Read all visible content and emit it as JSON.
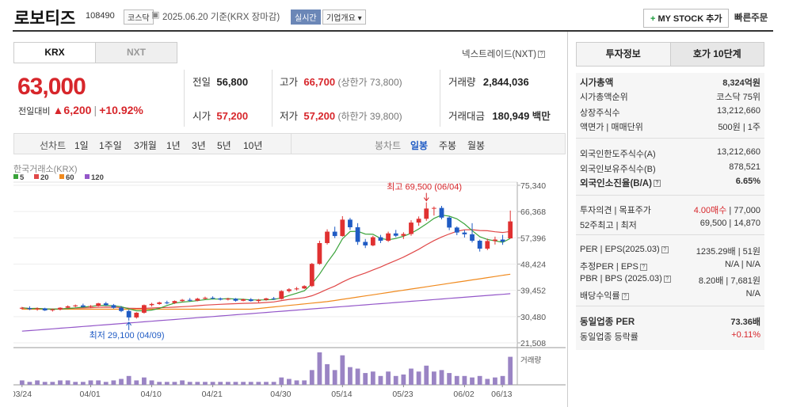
{
  "header": {
    "name": "로보티즈",
    "code": "108490",
    "market_tag": "코스닥",
    "date_text": "2025.06.20  기준(KRX 장마감)",
    "realtime_tag": "실시간",
    "company_tag": "기업개요",
    "mystock_label": "MY STOCK 추가",
    "quick_order_label": "빠른주문"
  },
  "exchange_tabs": [
    "KRX",
    "NXT"
  ],
  "nxt_link": "넥스트레이드(NXT)",
  "price": {
    "current": "63,000",
    "change_label": "전일대비",
    "change": "▲6,200",
    "change_pct": "+10.92%"
  },
  "quote": {
    "prev_label": "전일",
    "prev": "56,800",
    "open_label": "시가",
    "open": "57,200",
    "high_label": "고가",
    "high": "66,700",
    "upper_limit": "(상한가 73,800)",
    "low_label": "저가",
    "low": "57,200",
    "lower_limit": "(하한가 39,800)",
    "volume_label": "거래량",
    "volume": "2,844,036",
    "amount_label": "거래대금",
    "amount": "180,949",
    "amount_unit": "백만"
  },
  "period_bar": {
    "line_label": "선차트",
    "line_items": [
      "1일",
      "1주일",
      "3개월",
      "1년",
      "3년",
      "5년",
      "10년"
    ],
    "candle_label": "봉차트",
    "candle_items": [
      "일봉",
      "주봉",
      "월봉"
    ]
  },
  "chart_data": {
    "type": "candlestick",
    "source_label": "한국거래소(KRX)",
    "ma_legend": [
      {
        "name": "5",
        "color": "#3aa33a"
      },
      {
        "name": "20",
        "color": "#e04848"
      },
      {
        "name": "60",
        "color": "#f08a1e"
      },
      {
        "name": "120",
        "color": "#9457c9"
      }
    ],
    "y_ticks": [
      "75,340",
      "66,368",
      "57,396",
      "48,424",
      "39,452",
      "30,480",
      "21,508"
    ],
    "y_range": [
      21508,
      75340
    ],
    "x_ticks": [
      "03/24",
      "04/01",
      "04/10",
      "04/21",
      "04/30",
      "05/14",
      "05/23",
      "06/02",
      "06/13"
    ],
    "high_annotation": "최고 69,500 (06/04)",
    "low_annotation": "최저 29,100 (04/09)",
    "volume_label": "거래량",
    "candles": [
      [
        33200,
        33800,
        32900,
        33500
      ],
      [
        33400,
        34000,
        32700,
        33000
      ],
      [
        33000,
        33600,
        32500,
        33300
      ],
      [
        33300,
        33500,
        32400,
        32600
      ],
      [
        32700,
        33200,
        32200,
        32900
      ],
      [
        32900,
        33700,
        32600,
        33500
      ],
      [
        33500,
        34300,
        33300,
        34000
      ],
      [
        34000,
        34600,
        33700,
        34300
      ],
      [
        34300,
        34900,
        33600,
        33800
      ],
      [
        33800,
        34400,
        33400,
        34100
      ],
      [
        34100,
        35200,
        33900,
        35000
      ],
      [
        35000,
        35500,
        34100,
        34400
      ],
      [
        34400,
        34800,
        33200,
        33500
      ],
      [
        33500,
        34100,
        32000,
        32400
      ],
      [
        32400,
        32800,
        29100,
        30200
      ],
      [
        30200,
        32000,
        29800,
        31800
      ],
      [
        31800,
        34600,
        31500,
        34400
      ],
      [
        34400,
        35200,
        33900,
        34800
      ],
      [
        34800,
        35600,
        34500,
        35300
      ],
      [
        35300,
        35900,
        34700,
        35100
      ],
      [
        35100,
        36000,
        34800,
        35800
      ],
      [
        35800,
        36500,
        35500,
        36200
      ],
      [
        36200,
        36800,
        35600,
        35900
      ],
      [
        35900,
        36900,
        35700,
        36600
      ],
      [
        36600,
        37300,
        36300,
        36900
      ],
      [
        36900,
        37400,
        36400,
        36700
      ],
      [
        36700,
        37000,
        36000,
        36300
      ],
      [
        36300,
        36900,
        36000,
        36600
      ],
      [
        36600,
        36800,
        35600,
        35900
      ],
      [
        35900,
        36600,
        35700,
        36400
      ],
      [
        36400,
        36800,
        35600,
        35800
      ],
      [
        35800,
        36500,
        35300,
        36200
      ],
      [
        36200,
        36900,
        35900,
        36700
      ],
      [
        36700,
        37200,
        36200,
        36500
      ],
      [
        36500,
        39500,
        36300,
        39200
      ],
      [
        39200,
        40200,
        38700,
        39800
      ],
      [
        39800,
        40600,
        39400,
        40100
      ],
      [
        40100,
        41200,
        39900,
        40900
      ],
      [
        40900,
        48800,
        40600,
        48500
      ],
      [
        48500,
        56400,
        48200,
        55600
      ],
      [
        55600,
        60300,
        55100,
        59500
      ],
      [
        59500,
        61200,
        57300,
        58000
      ],
      [
        58000,
        64800,
        57800,
        63600
      ],
      [
        63600,
        64200,
        60100,
        61000
      ],
      [
        61000,
        62400,
        55000,
        56000
      ],
      [
        56000,
        57000,
        53900,
        54800
      ],
      [
        54800,
        58100,
        54500,
        57600
      ],
      [
        57600,
        58400,
        55600,
        56400
      ],
      [
        56400,
        59500,
        56000,
        58900
      ],
      [
        58900,
        60100,
        57600,
        58100
      ],
      [
        58100,
        59300,
        57000,
        58700
      ],
      [
        58700,
        63400,
        58100,
        62600
      ],
      [
        62600,
        64700,
        61500,
        63900
      ],
      [
        63900,
        69500,
        63200,
        67400
      ],
      [
        67400,
        68100,
        65000,
        67600
      ],
      [
        67600,
        68300,
        63700,
        64300
      ],
      [
        64300,
        64800,
        60000,
        60900
      ],
      [
        60900,
        61300,
        58300,
        59200
      ],
      [
        59200,
        60000,
        57500,
        58600
      ],
      [
        58600,
        62400,
        55800,
        56400
      ],
      [
        56400,
        56800,
        52700,
        53700
      ],
      [
        53700,
        57100,
        53200,
        56300
      ],
      [
        56300,
        57800,
        55100,
        56800
      ],
      [
        56800,
        58400,
        55000,
        56100
      ],
      [
        57200,
        66700,
        57200,
        63000
      ]
    ],
    "volumes": [
      3,
      2,
      3,
      2,
      2,
      3,
      3,
      2,
      2,
      3,
      3,
      2,
      3,
      4,
      6,
      3,
      5,
      3,
      2,
      2,
      2,
      3,
      2,
      2,
      2,
      2,
      2,
      2,
      2,
      2,
      2,
      2,
      2,
      2,
      5,
      4,
      3,
      3,
      10,
      22,
      14,
      10,
      20,
      12,
      11,
      8,
      9,
      6,
      9,
      6,
      7,
      11,
      9,
      13,
      9,
      10,
      8,
      6,
      6,
      5,
      6,
      4,
      5,
      6,
      19
    ]
  },
  "right_panel": {
    "tabs": [
      "투자정보",
      "호가 10단계"
    ],
    "rows": [
      {
        "label": "시가총액",
        "value": "8,324억원",
        "bold": true
      },
      {
        "label": "시가총액순위",
        "value": "코스닥 75위"
      },
      {
        "label": "상장주식수",
        "value": "13,212,660"
      },
      {
        "label": "액면가 | 매매단위",
        "value": "500원 | 1주"
      },
      {
        "label": "외국인한도주식수(A)",
        "value": "13,212,660"
      },
      {
        "label": "외국인보유주식수(B)",
        "value": "878,521"
      },
      {
        "label": "외국인소진율(B/A)",
        "value": "6.65%",
        "bold": true
      },
      {
        "label": "투자의견 | 목표주가",
        "value_red": "4.00매수",
        "value": " | 77,000"
      },
      {
        "label": "52주최고 | 최저",
        "value": "69,500 | 14,870"
      },
      {
        "label": "PER | EPS(2025.03)",
        "value": "1235.29배 | 51원"
      },
      {
        "label": "추정PER | EPS",
        "value": "N/A | N/A"
      },
      {
        "label": "PBR | BPS (2025.03)",
        "value": "8.20배 | 7,681원"
      },
      {
        "label": "배당수익률",
        "value": "N/A"
      },
      {
        "label": "동일업종 PER",
        "value": "73.36배",
        "bold": true
      },
      {
        "label": "동일업종 등락률",
        "value_red": "+0.11%"
      }
    ]
  }
}
